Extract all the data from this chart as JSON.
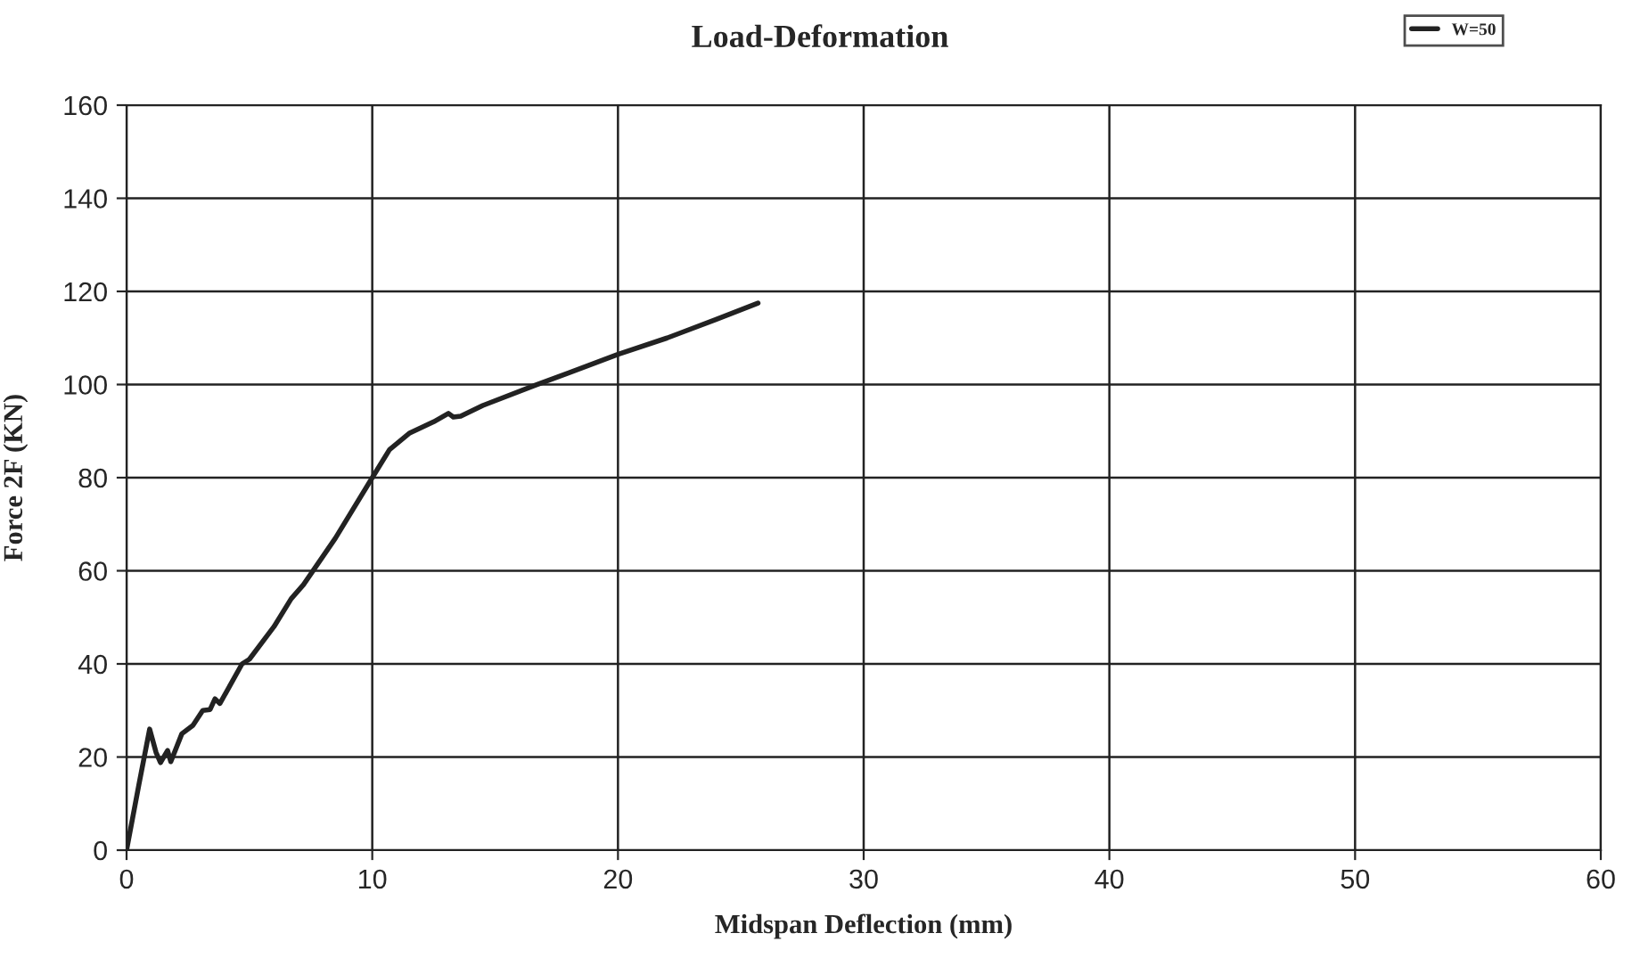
{
  "chart_data": {
    "type": "line",
    "title": "Load-Deformation",
    "xlabel": "Midspan Deflection (mm)",
    "ylabel": "Force 2F (KN)",
    "series": [
      {
        "name": "W=50",
        "color": "#222222",
        "x": [
          0,
          0.5,
          0.94,
          1.2,
          1.38,
          1.67,
          1.8,
          2.25,
          2.7,
          3.1,
          3.4,
          3.6,
          3.8,
          4.7,
          5.0,
          6.0,
          6.7,
          7.2,
          8.5,
          10.0,
          10.7,
          11.5,
          12.5,
          13.1,
          13.3,
          13.6,
          14.5,
          16.6,
          18.0,
          20.0,
          22.0,
          24.0,
          25.7
        ],
        "values": [
          0,
          14,
          26,
          21,
          18.8,
          21.4,
          19,
          25,
          26.8,
          30,
          30.2,
          32.5,
          31.5,
          40,
          41,
          48,
          54,
          57,
          67,
          80,
          86,
          89.5,
          92,
          93.8,
          93,
          93.2,
          95.5,
          99.8,
          102.5,
          106.5,
          110,
          114,
          117.5
        ]
      }
    ],
    "xlim": [
      0,
      60
    ],
    "xticks": [
      0,
      10,
      20,
      30,
      40,
      50,
      60
    ],
    "ylim": [
      0,
      160
    ],
    "yticks": [
      0,
      20,
      40,
      60,
      80,
      100,
      120,
      140,
      160
    ],
    "grid": true,
    "legend": "top right",
    "marker": "none",
    "line_style": "solid"
  }
}
